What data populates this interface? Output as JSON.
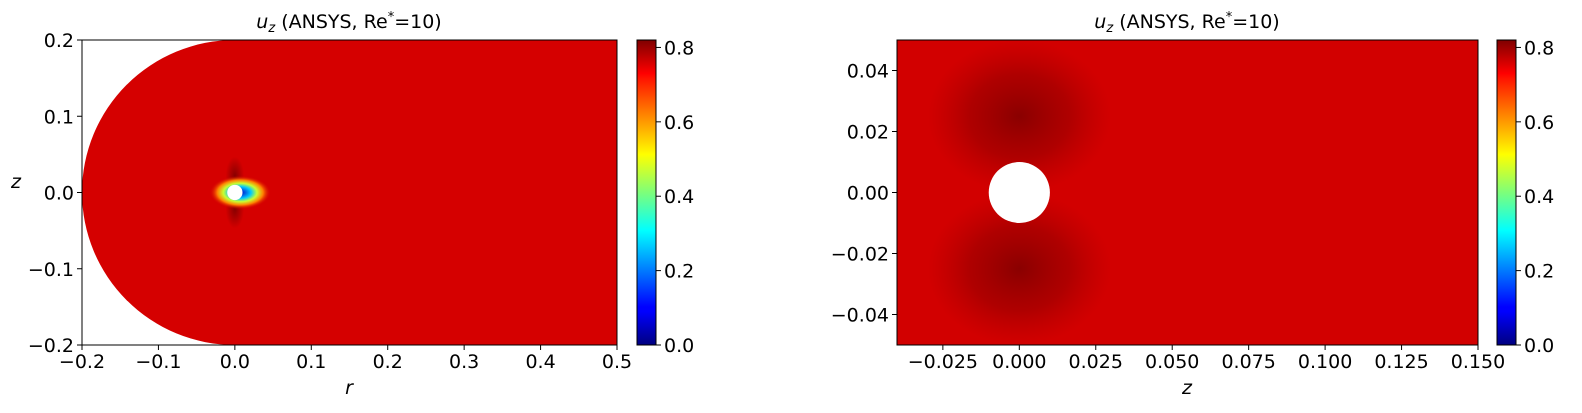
{
  "chart_data": [
    {
      "type": "heatmap",
      "title_var": "u",
      "title_sub": "z",
      "title_rest": " (ANSYS, Re",
      "title_sup": "*",
      "title_end": "=10)",
      "xlabel": "r",
      "ylabel": "z",
      "xlim": [
        -0.2,
        0.5
      ],
      "ylim": [
        -0.2,
        0.2
      ],
      "x_ticks": [
        -0.2,
        -0.1,
        0.0,
        0.1,
        0.2,
        0.3,
        0.4,
        0.5
      ],
      "x_tick_labels": [
        "−0.2",
        "−0.1",
        "0.0",
        "0.1",
        "0.2",
        "0.3",
        "0.4",
        "0.5"
      ],
      "y_ticks": [
        -0.2,
        -0.1,
        0.0,
        0.1,
        0.2
      ],
      "y_tick_labels": [
        "−0.2",
        "−0.1",
        "0.0",
        "0.1",
        "0.2"
      ],
      "domain_outer_radius": 0.2,
      "sphere_radius": 0.01,
      "colorbar": {
        "colormap": "jet",
        "vmin": 0.0,
        "vmax": 0.82,
        "ticks": [
          0.0,
          0.2,
          0.4,
          0.6,
          0.8
        ],
        "tick_labels": [
          "0.0",
          "0.2",
          "0.4",
          "0.6",
          "0.8"
        ]
      }
    },
    {
      "type": "heatmap",
      "title_var": "u",
      "title_sub": "z",
      "title_rest": " (ANSYS, Re",
      "title_sup": "*",
      "title_end": "=10)",
      "xlabel": "z",
      "ylabel": "",
      "xlim": [
        -0.04,
        0.15
      ],
      "ylim": [
        -0.05,
        0.05
      ],
      "x_ticks": [
        -0.025,
        0.0,
        0.025,
        0.05,
        0.075,
        0.1,
        0.125,
        0.15
      ],
      "x_tick_labels": [
        "−0.025",
        "0.000",
        "0.025",
        "0.050",
        "0.075",
        "0.100",
        "0.125",
        "0.150"
      ],
      "y_ticks": [
        -0.04,
        -0.02,
        0.0,
        0.02,
        0.04
      ],
      "y_tick_labels": [
        "−0.04",
        "−0.02",
        "0.00",
        "0.02",
        "0.04"
      ],
      "sphere_radius": 0.01,
      "colorbar": {
        "colormap": "jet",
        "vmin": 0.0,
        "vmax": 0.82,
        "ticks": [
          0.0,
          0.2,
          0.4,
          0.6,
          0.8
        ],
        "tick_labels": [
          "0.0",
          "0.2",
          "0.4",
          "0.6",
          "0.8"
        ]
      }
    }
  ]
}
